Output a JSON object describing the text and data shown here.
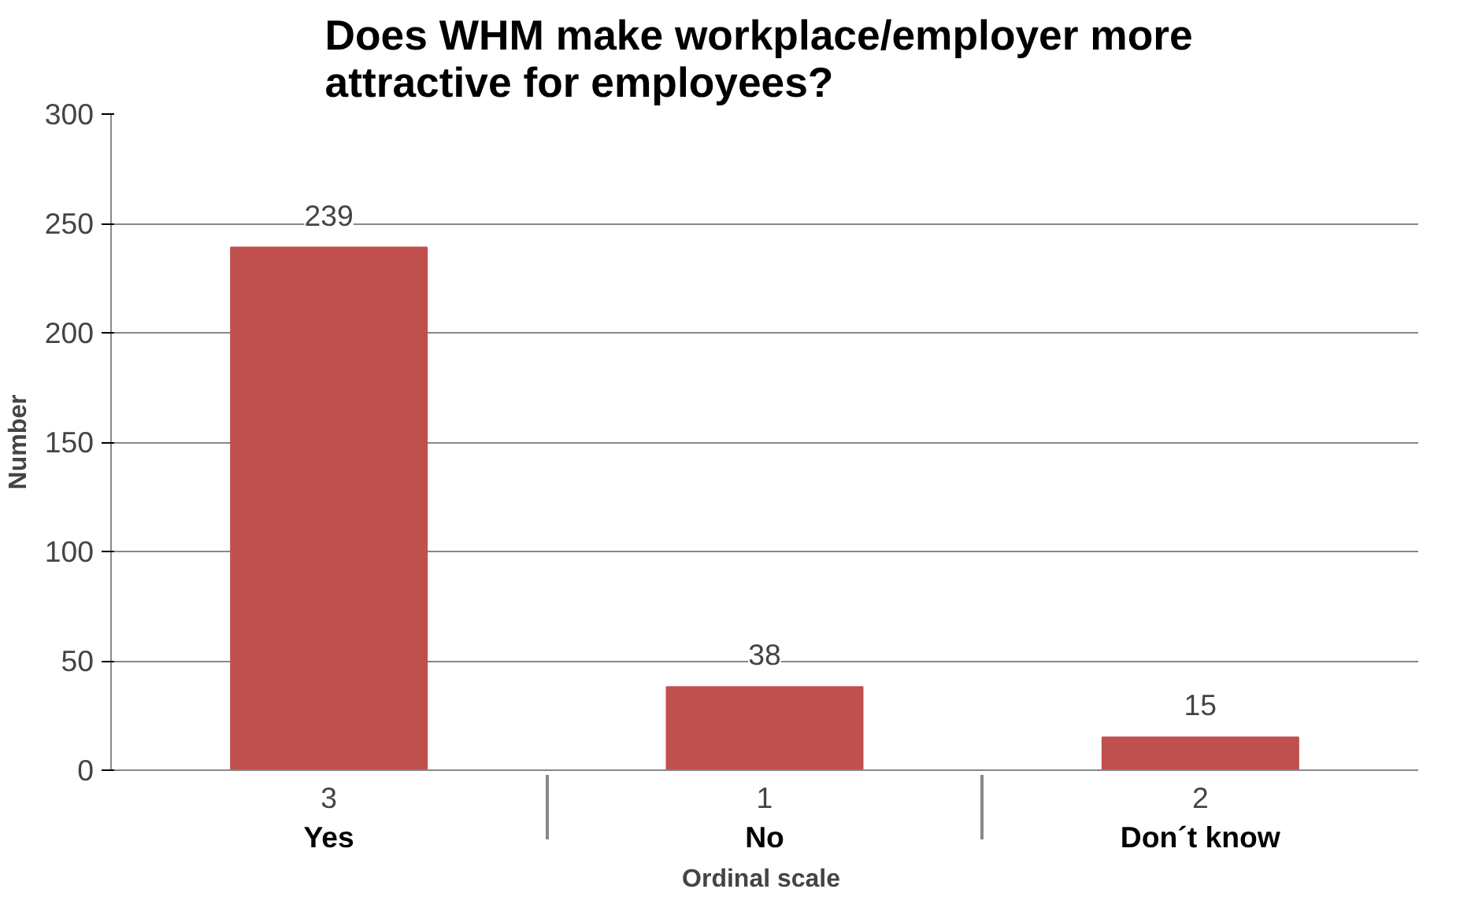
{
  "chart_data": {
    "type": "bar",
    "title": "Does WHM make workplace/employer  more\nattractive for employees?",
    "xlabel": "Ordinal  scale",
    "ylabel": "Number",
    "categories": [
      "3\nYes",
      "1\nNo",
      "2\nDon´t know"
    ],
    "values": [
      239,
      38,
      15
    ],
    "color": "#c0504d",
    "data_labels": true,
    "ylim": [
      0,
      300
    ],
    "yticks": [
      0,
      50,
      100,
      150,
      200,
      250,
      300
    ],
    "grid": "y"
  }
}
